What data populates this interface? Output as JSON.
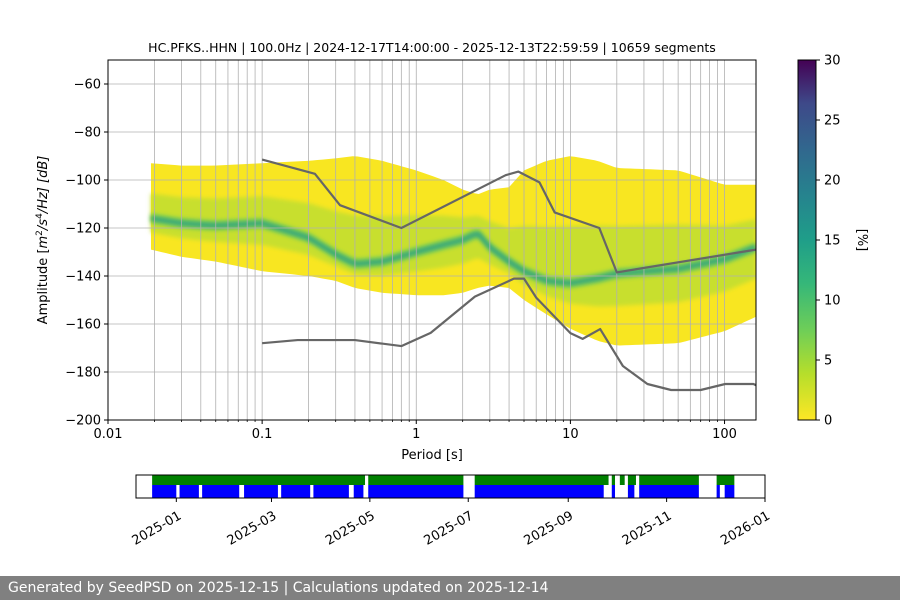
{
  "chart_data": [
    {
      "type": "heatmap",
      "title": "HC.PFKS..HHN | 100.0Hz | 2024-12-17T14:00:00 - 2025-12-13T22:59:59 | 10659 segments",
      "xlabel": "Period [s]",
      "ylabel": "Amplitude [m²/s⁴/Hz] [dB]",
      "ylabel_parts": {
        "pre": "Amplitude [",
        "m": "m",
        "e1": "2",
        "mid": "/s",
        "e2": "4",
        "post": "/Hz] [dB]"
      },
      "x_scale": "log",
      "xlim": [
        0.01,
        160
      ],
      "ylim": [
        -200,
        -50
      ],
      "x_ticks": [
        0.01,
        0.1,
        1,
        10,
        100
      ],
      "x_tick_labels": [
        "0.01",
        "0.1",
        "1",
        "10",
        "100"
      ],
      "y_ticks": [
        -200,
        -180,
        -160,
        -140,
        -120,
        -100,
        -80,
        -60
      ],
      "y_tick_labels": [
        "−200",
        "−180",
        "−160",
        "−140",
        "−120",
        "−100",
        "−80",
        "−60"
      ],
      "grid": true,
      "colormap": "viridis_r",
      "colorbar": {
        "label": "[%]",
        "range": [
          0,
          30
        ],
        "ticks": [
          0,
          5,
          10,
          15,
          20,
          25,
          30
        ]
      },
      "density_band": {
        "period_start": 0.019,
        "periods": [
          0.019,
          0.03,
          0.05,
          0.1,
          0.2,
          0.3,
          0.4,
          0.6,
          1.0,
          1.5,
          2.0,
          2.5,
          3.0,
          4.0,
          5.0,
          7.0,
          10.0,
          15.0,
          20.0,
          50.0,
          100.0,
          160.0
        ],
        "mode": [
          -116,
          -118,
          -119,
          -118,
          -124,
          -131,
          -135,
          -134,
          -130,
          -127,
          -125,
          -122,
          -128,
          -134,
          -138,
          -142,
          -143,
          -141,
          -139,
          -137,
          -133,
          -128
        ],
        "upper": [
          -93,
          -94,
          -94,
          -93,
          -92,
          -91,
          -90,
          -92,
          -96,
          -100,
          -104,
          -106,
          -104,
          -103,
          -96,
          -92,
          -90,
          -92,
          -95,
          -96,
          -102,
          -102
        ],
        "lower": [
          -129,
          -132,
          -134,
          -138,
          -140,
          -142,
          -145,
          -147,
          -148,
          -148,
          -147,
          -145,
          -144,
          -145,
          -150,
          -156,
          -162,
          -167,
          -169,
          -168,
          -163,
          -157
        ]
      },
      "series": [
        {
          "name": "NHNM",
          "color": "#666666",
          "x": [
            0.1,
            0.22,
            0.32,
            0.8,
            3.8,
            4.6,
            6.3,
            7.9,
            15.4,
            20,
            160
          ],
          "y": [
            -91.5,
            -97.4,
            -110.5,
            -120,
            -98,
            -96.5,
            -101,
            -113.5,
            -120,
            -138.5,
            -129
          ]
        },
        {
          "name": "NLNM",
          "color": "#666666",
          "x": [
            0.1,
            0.17,
            0.4,
            0.8,
            1.24,
            2.4,
            4.3,
            5.0,
            6.0,
            10.0,
            12.0,
            15.6,
            21.9,
            31.6,
            45,
            70,
            101,
            154,
            160
          ],
          "y": [
            -168,
            -166.7,
            -166.7,
            -169.2,
            -163.7,
            -148.6,
            -141.1,
            -141.1,
            -149.0,
            -163.8,
            -166.2,
            -162.1,
            -177.5,
            -185.0,
            -187.5,
            -187.5,
            -185.0,
            -185.0,
            -185.5
          ]
        }
      ]
    },
    {
      "type": "timeline",
      "x_ticks": [
        "2025-01",
        "2025-03",
        "2025-05",
        "2025-07",
        "2025-09",
        "2025-11",
        "2026-01"
      ],
      "xlim": [
        "2024-12-07",
        "2026-01-01"
      ],
      "coverage_color": "#008000",
      "psd_color": "#0000ff",
      "coverage_ranges": [
        [
          "2024-12-17",
          "2025-04-28"
        ],
        [
          "2025-04-30",
          "2025-06-28"
        ],
        [
          "2025-07-05",
          "2025-09-26"
        ],
        [
          "2025-09-28",
          "2025-09-30"
        ],
        [
          "2025-10-03",
          "2025-10-06"
        ],
        [
          "2025-10-08",
          "2025-10-13"
        ],
        [
          "2025-10-15",
          "2025-11-21"
        ],
        [
          "2025-12-02",
          "2025-12-13"
        ]
      ],
      "psd_ranges": [
        [
          "2024-12-17",
          "2025-01-01"
        ],
        [
          "2025-01-03",
          "2025-01-15"
        ],
        [
          "2025-01-17",
          "2025-02-09"
        ],
        [
          "2025-02-12",
          "2025-03-05"
        ],
        [
          "2025-03-07",
          "2025-03-25"
        ],
        [
          "2025-03-27",
          "2025-04-18"
        ],
        [
          "2025-04-21",
          "2025-04-27"
        ],
        [
          "2025-04-30",
          "2025-06-28"
        ],
        [
          "2025-07-05",
          "2025-09-23"
        ],
        [
          "2025-09-28",
          "2025-09-30"
        ],
        [
          "2025-10-08",
          "2025-10-12"
        ],
        [
          "2025-10-15",
          "2025-11-21"
        ],
        [
          "2025-12-02",
          "2025-12-04"
        ],
        [
          "2025-12-07",
          "2025-12-13"
        ]
      ]
    }
  ],
  "footer": {
    "text": "Generated by SeedPSD on 2025-12-15 | Calculations updated on 2025-12-14"
  }
}
